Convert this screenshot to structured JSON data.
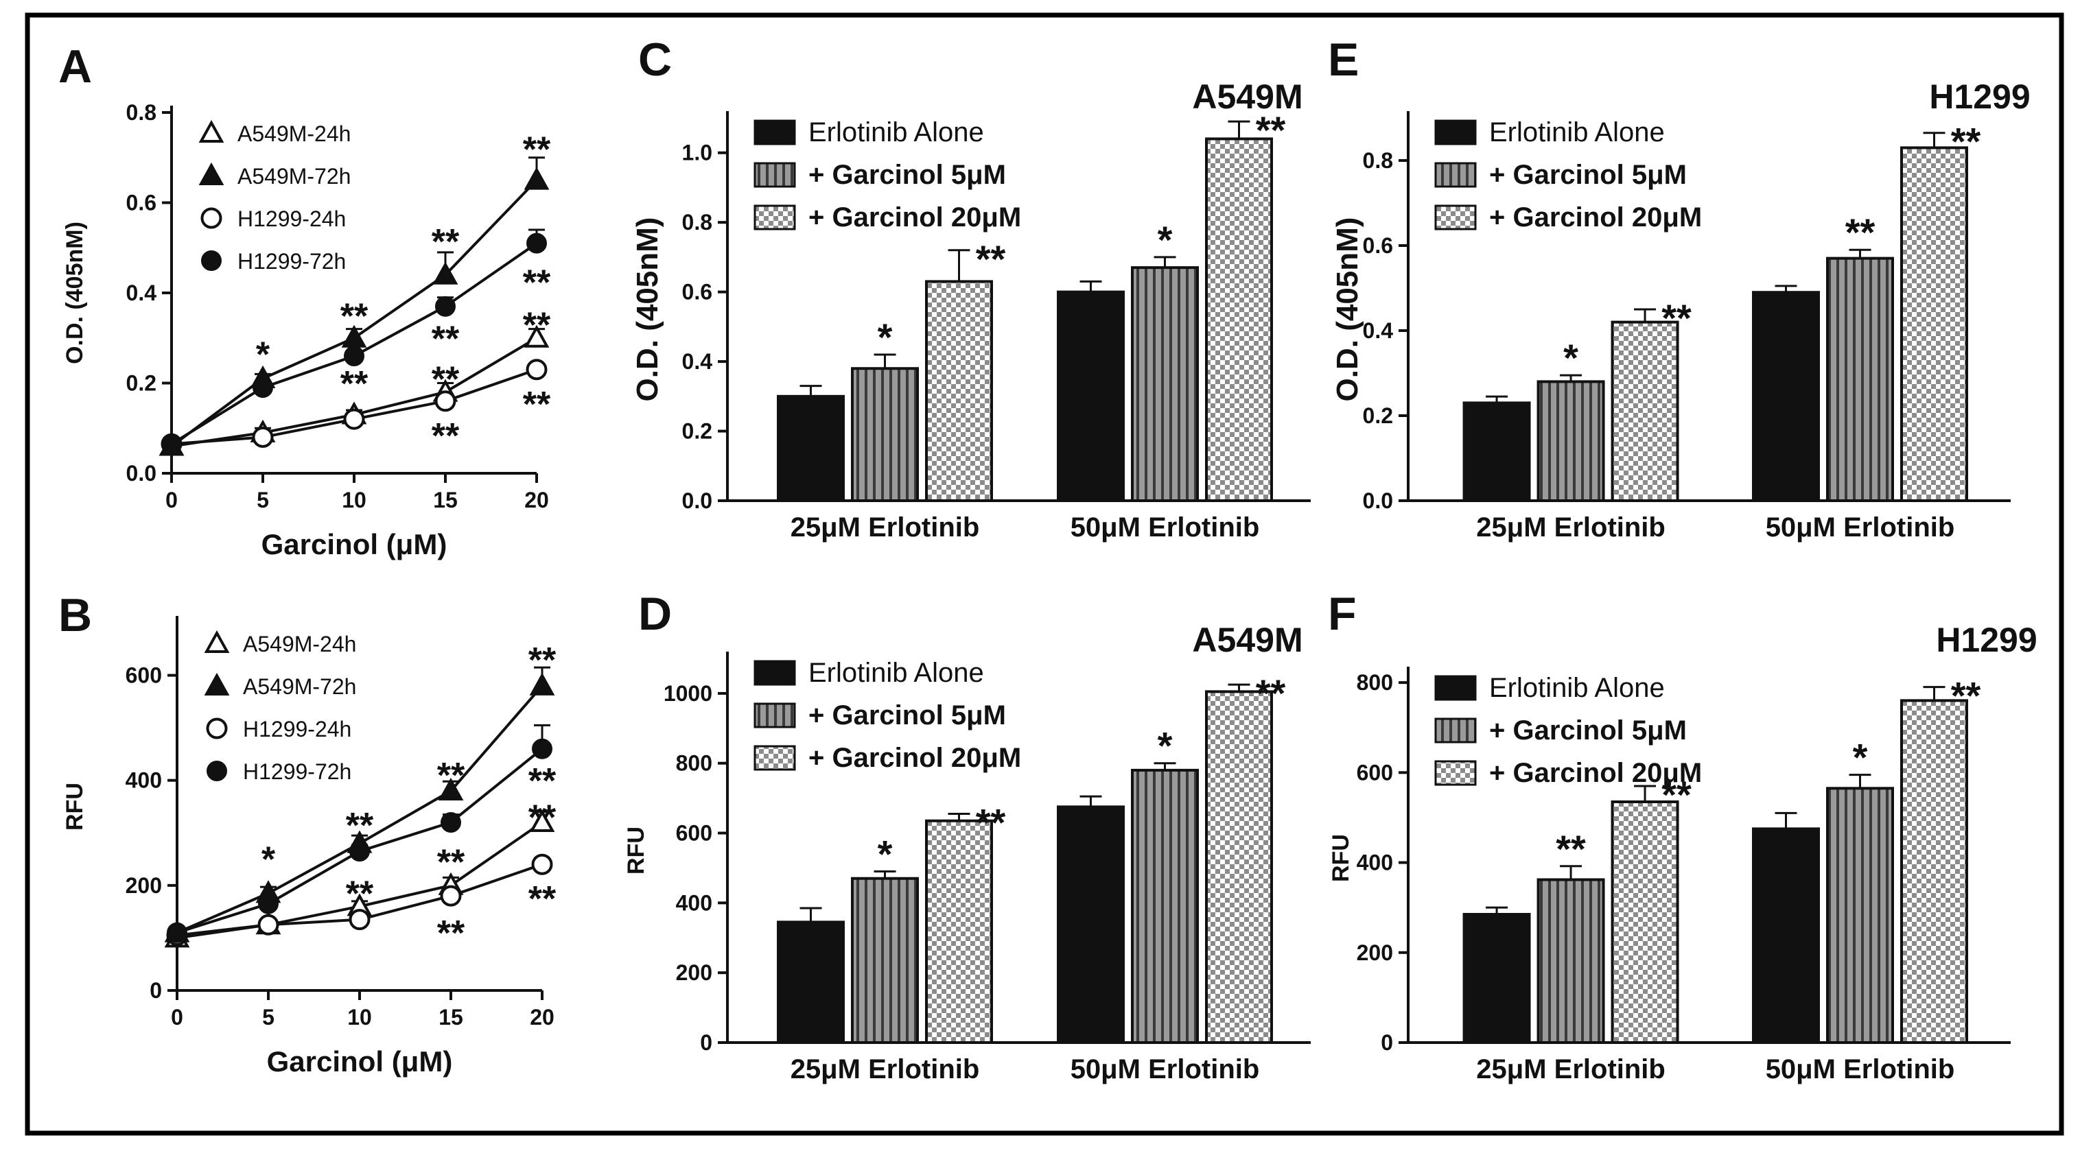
{
  "figure": {
    "border_color": "#000000",
    "ink_color": "#111111"
  },
  "chart_data": [
    {
      "panel": "A",
      "type": "line",
      "title": "",
      "xlabel": "Garcinol (μM)",
      "ylabel": "O.D. (405nM)",
      "x": [
        0,
        5,
        10,
        15,
        20
      ],
      "xticks": [
        "0",
        "5",
        "10",
        "15",
        "20"
      ],
      "xlim": [
        0,
        20
      ],
      "ylim": [
        0,
        0.8
      ],
      "yticks": [
        "0.0",
        "0.2",
        "0.4",
        "0.6",
        "0.8"
      ],
      "legend": "top-left",
      "series": [
        {
          "name": "A549M-24h",
          "marker": "triangle-open",
          "values": [
            0.06,
            0.09,
            0.13,
            0.18,
            0.3
          ],
          "errors": [
            0.01,
            0.01,
            0.01,
            0.02,
            0.02
          ]
        },
        {
          "name": "A549M-72h",
          "marker": "triangle-filled",
          "values": [
            0.06,
            0.21,
            0.3,
            0.44,
            0.65
          ],
          "errors": [
            0.01,
            0.01,
            0.02,
            0.05,
            0.05
          ]
        },
        {
          "name": "H1299-24h",
          "marker": "circle-open",
          "values": [
            0.065,
            0.08,
            0.12,
            0.16,
            0.23
          ],
          "errors": [
            0.01,
            0.01,
            0.01,
            0.01,
            0.01
          ]
        },
        {
          "name": "H1299-72h",
          "marker": "circle-filled",
          "values": [
            0.065,
            0.19,
            0.26,
            0.37,
            0.51
          ],
          "errors": [
            0.01,
            0.01,
            0.01,
            0.02,
            0.03
          ]
        }
      ],
      "annotations": [
        {
          "text": "*",
          "x": 5,
          "y": 0.27
        },
        {
          "text": "**",
          "x": 10,
          "y": 0.355
        },
        {
          "text": "**",
          "x": 10,
          "y": 0.205
        },
        {
          "text": "**",
          "x": 15,
          "y": 0.52
        },
        {
          "text": "**",
          "x": 15,
          "y": 0.305
        },
        {
          "text": "**",
          "x": 15,
          "y": 0.215
        },
        {
          "text": "**",
          "x": 15,
          "y": 0.09
        },
        {
          "text": "**",
          "x": 20,
          "y": 0.725
        },
        {
          "text": "**",
          "x": 20,
          "y": 0.43
        },
        {
          "text": "**",
          "x": 20,
          "y": 0.335
        },
        {
          "text": "**",
          "x": 20,
          "y": 0.16
        }
      ]
    },
    {
      "panel": "B",
      "type": "line",
      "title": "",
      "xlabel": "Garcinol (μM)",
      "ylabel": "RFU",
      "x": [
        0,
        5,
        10,
        15,
        20
      ],
      "xticks": [
        "0",
        "5",
        "10",
        "15",
        "20"
      ],
      "xlim": [
        0,
        20
      ],
      "ylim": [
        0,
        700
      ],
      "yticks": [
        "0",
        "200",
        "400",
        "600"
      ],
      "legend": "top-left",
      "series": [
        {
          "name": "A549M-24h",
          "marker": "triangle-open",
          "values": [
            100,
            125,
            160,
            200,
            320
          ],
          "errors": [
            8,
            10,
            10,
            15,
            20
          ]
        },
        {
          "name": "A549M-72h",
          "marker": "triangle-filled",
          "values": [
            110,
            185,
            280,
            380,
            580
          ],
          "errors": [
            8,
            12,
            15,
            18,
            35
          ]
        },
        {
          "name": "H1299-24h",
          "marker": "circle-open",
          "values": [
            105,
            125,
            135,
            180,
            240
          ],
          "errors": [
            8,
            8,
            8,
            10,
            12
          ]
        },
        {
          "name": "H1299-72h",
          "marker": "circle-filled",
          "values": [
            110,
            165,
            265,
            320,
            460
          ],
          "errors": [
            8,
            10,
            12,
            15,
            45
          ]
        }
      ],
      "annotations": [
        {
          "text": "*",
          "x": 5,
          "y": 255
        },
        {
          "text": "**",
          "x": 10,
          "y": 320
        },
        {
          "text": "**",
          "x": 10,
          "y": 190
        },
        {
          "text": "**",
          "x": 15,
          "y": 415
        },
        {
          "text": "**",
          "x": 15,
          "y": 250
        },
        {
          "text": "**",
          "x": 15,
          "y": 115
        },
        {
          "text": "**",
          "x": 20,
          "y": 635
        },
        {
          "text": "**",
          "x": 20,
          "y": 405
        },
        {
          "text": "**",
          "x": 20,
          "y": 335
        },
        {
          "text": "**",
          "x": 20,
          "y": 180
        }
      ]
    },
    {
      "panel": "C",
      "type": "bar",
      "title": "A549M",
      "xlabel": "",
      "ylabel": "O.D. (405nM)",
      "categories": [
        "25μM Erlotinib",
        "50μM Erlotinib"
      ],
      "ylim": [
        0,
        1.1
      ],
      "yticks": [
        "0.0",
        "0.2",
        "0.4",
        "0.6",
        "0.8",
        "1.0"
      ],
      "legend": "top-left",
      "series": [
        {
          "name": "Erlotinib Alone",
          "pattern": "solid",
          "values": [
            0.3,
            0.6
          ],
          "errors": [
            0.03,
            0.03
          ],
          "stars": [
            "",
            ""
          ]
        },
        {
          "name": "+ Garcinol 5μM",
          "pattern": "stripes",
          "values": [
            0.38,
            0.67
          ],
          "errors": [
            0.04,
            0.03
          ],
          "stars": [
            "*",
            "*"
          ]
        },
        {
          "name": "+ Garcinol 20μM",
          "pattern": "checker",
          "values": [
            0.63,
            1.04
          ],
          "errors": [
            0.09,
            0.05
          ],
          "stars": [
            "**",
            "**"
          ]
        }
      ]
    },
    {
      "panel": "D",
      "type": "bar",
      "title": "A549M",
      "xlabel": "",
      "ylabel": "RFU",
      "categories": [
        "25μM Erlotinib",
        "50μM Erlotinib"
      ],
      "ylim": [
        0,
        1100
      ],
      "yticks": [
        "0",
        "200",
        "400",
        "600",
        "800",
        "1000"
      ],
      "legend": "top-left",
      "series": [
        {
          "name": "Erlotinib Alone",
          "pattern": "solid",
          "values": [
            345,
            675
          ],
          "errors": [
            40,
            30
          ],
          "stars": [
            "",
            ""
          ]
        },
        {
          "name": "+ Garcinol 5μM",
          "pattern": "stripes",
          "values": [
            470,
            780
          ],
          "errors": [
            20,
            20
          ],
          "stars": [
            "*",
            "*"
          ]
        },
        {
          "name": "+ Garcinol 20μM",
          "pattern": "checker",
          "values": [
            635,
            1005
          ],
          "errors": [
            20,
            20
          ],
          "stars": [
            "**",
            "**"
          ]
        }
      ]
    },
    {
      "panel": "E",
      "type": "bar",
      "title": "H1299",
      "xlabel": "",
      "ylabel": "O.D. (405nM)",
      "categories": [
        "25μM Erlotinib",
        "50μM Erlotinib"
      ],
      "ylim": [
        0,
        0.9
      ],
      "yticks": [
        "0.0",
        "0.2",
        "0.4",
        "0.6",
        "0.8"
      ],
      "legend": "top-left",
      "series": [
        {
          "name": "Erlotinib Alone",
          "pattern": "solid",
          "values": [
            0.23,
            0.49
          ],
          "errors": [
            0.015,
            0.015
          ],
          "stars": [
            "",
            ""
          ]
        },
        {
          "name": "+ Garcinol 5μM",
          "pattern": "stripes",
          "values": [
            0.28,
            0.57
          ],
          "errors": [
            0.015,
            0.02
          ],
          "stars": [
            "*",
            "**"
          ]
        },
        {
          "name": "+ Garcinol 20μM",
          "pattern": "checker",
          "values": [
            0.42,
            0.83
          ],
          "errors": [
            0.03,
            0.035
          ],
          "stars": [
            "**",
            "**"
          ]
        }
      ]
    },
    {
      "panel": "F",
      "type": "bar",
      "title": "H1299",
      "xlabel": "",
      "ylabel": "RFU",
      "categories": [
        "25μM Erlotinib",
        "50μM Erlotinib"
      ],
      "ylim": [
        0,
        820
      ],
      "yticks": [
        "0",
        "200",
        "400",
        "600",
        "800"
      ],
      "legend": "top-left",
      "series": [
        {
          "name": "Erlotinib Alone",
          "pattern": "solid",
          "values": [
            285,
            475
          ],
          "errors": [
            15,
            35
          ],
          "stars": [
            "",
            ""
          ]
        },
        {
          "name": "+ Garcinol 5μM",
          "pattern": "stripes",
          "values": [
            362,
            565
          ],
          "errors": [
            30,
            30
          ],
          "stars": [
            "**",
            "*"
          ]
        },
        {
          "name": "+ Garcinol 20μM",
          "pattern": "checker",
          "values": [
            535,
            760
          ],
          "errors": [
            35,
            30
          ],
          "stars": [
            "**",
            "**"
          ]
        }
      ]
    }
  ]
}
